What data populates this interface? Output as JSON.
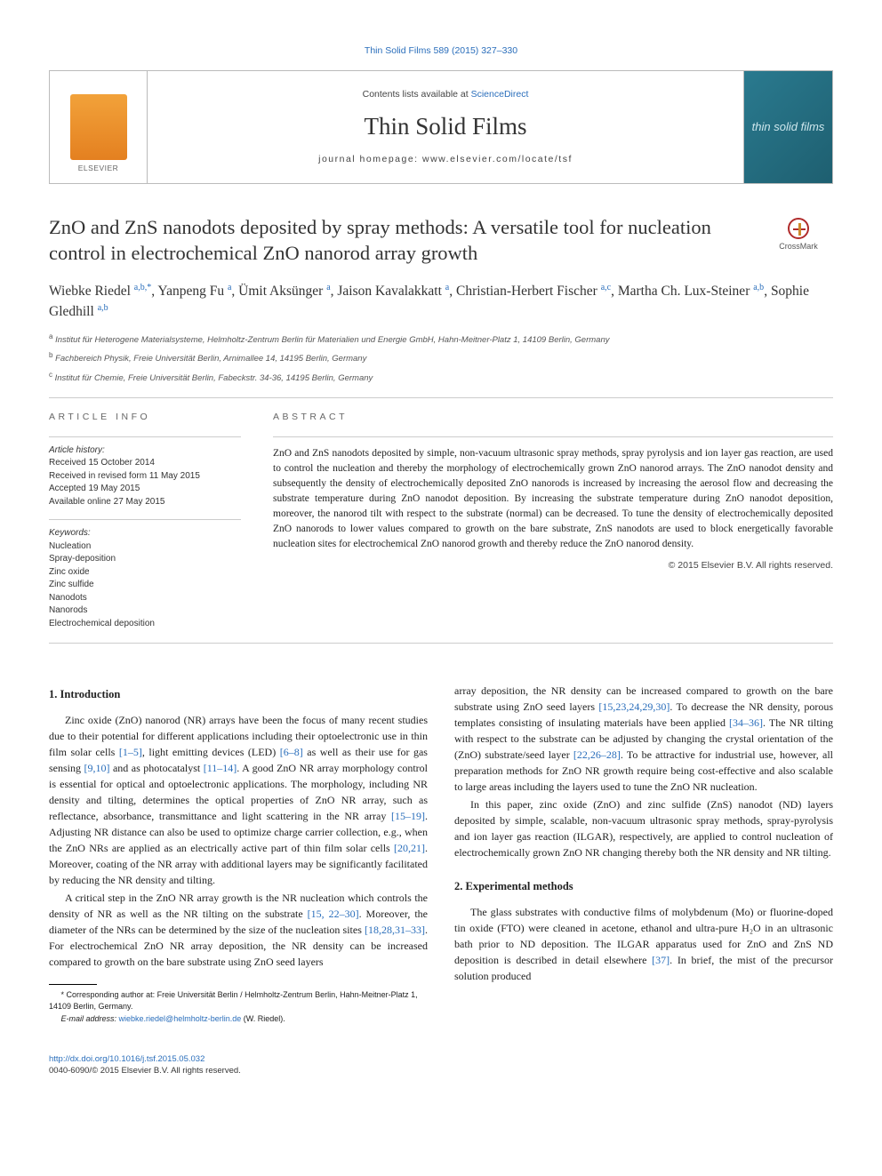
{
  "topLink": "Thin Solid Films 589 (2015) 327–330",
  "header": {
    "contentsPrefix": "Contents lists available at ",
    "contentsLink": "ScienceDirect",
    "journalName": "Thin Solid Films",
    "homepage": "journal homepage: www.elsevier.com/locate/tsf",
    "coverText": "thin solid films"
  },
  "title": "ZnO and ZnS nanodots deposited by spray methods: A versatile tool for nucleation control in electrochemical ZnO nanorod array growth",
  "crossmarkLabel": "CrossMark",
  "authors": [
    {
      "name": "Wiebke Riedel ",
      "sup": "a,b,*"
    },
    {
      "name": ", Yanpeng Fu ",
      "sup": "a"
    },
    {
      "name": ", Ümit Aksünger ",
      "sup": "a"
    },
    {
      "name": ", Jaison Kavalakkatt ",
      "sup": "a"
    },
    {
      "name": ", Christian-Herbert Fischer ",
      "sup": "a,c"
    },
    {
      "name": ", Martha Ch. Lux-Steiner ",
      "sup": "a,b"
    },
    {
      "name": ", Sophie Gledhill ",
      "sup": "a,b"
    }
  ],
  "affiliations": [
    {
      "sup": "a",
      "text": " Institut für Heterogene Materialsysteme, Helmholtz-Zentrum Berlin für Materialien und Energie GmbH, Hahn-Meitner-Platz 1, 14109 Berlin, Germany"
    },
    {
      "sup": "b",
      "text": " Fachbereich Physik, Freie Universität Berlin, Arnimallee 14, 14195 Berlin, Germany"
    },
    {
      "sup": "c",
      "text": " Institut für Chemie, Freie Universität Berlin, Fabeckstr. 34-36, 14195 Berlin, Germany"
    }
  ],
  "articleInfo": {
    "label": "article info",
    "historyLabel": "Article history:",
    "history": [
      "Received 15 October 2014",
      "Received in revised form 11 May 2015",
      "Accepted 19 May 2015",
      "Available online 27 May 2015"
    ],
    "keywordsLabel": "Keywords:",
    "keywords": [
      "Nucleation",
      "Spray-deposition",
      "Zinc oxide",
      "Zinc sulfide",
      "Nanodots",
      "Nanorods",
      "Electrochemical deposition"
    ]
  },
  "abstract": {
    "label": "abstract",
    "text": "ZnO and ZnS nanodots deposited by simple, non-vacuum ultrasonic spray methods, spray pyrolysis and ion layer gas reaction, are used to control the nucleation and thereby the morphology of electrochemically grown ZnO nanorod arrays. The ZnO nanodot density and subsequently the density of electrochemically deposited ZnO nanorods is increased by increasing the aerosol flow and decreasing the substrate temperature during ZnO nanodot deposition. By increasing the substrate temperature during ZnO nanodot deposition, moreover, the nanorod tilt with respect to the substrate (normal) can be decreased. To tune the density of electrochemically deposited ZnO nanorods to lower values compared to growth on the bare substrate, ZnS nanodots are used to block energetically favorable nucleation sites for electrochemical ZnO nanorod growth and thereby reduce the ZnO nanorod density.",
    "copyright": "© 2015 Elsevier B.V. All rights reserved."
  },
  "sections": {
    "introTitle": "1. Introduction",
    "intro1a": "Zinc oxide (ZnO) nanorod (NR) arrays have been the focus of many recent studies due to their potential for different applications including their optoelectronic use in thin film solar cells ",
    "ref1": "[1–5]",
    "intro1b": ", light emitting devices (LED) ",
    "ref2": "[6–8]",
    "intro1c": " as well as their use for gas sensing ",
    "ref3": "[9,10]",
    "intro1d": " and as photocatalyst ",
    "ref4": "[11–14]",
    "intro1e": ". A good ZnO NR array morphology control is essential for optical and optoelectronic applications. The morphology, including NR density and tilting, determines the optical properties of ZnO NR array, such as reflectance, absorbance, transmittance and light scattering in the NR array ",
    "ref5": "[15–19]",
    "intro1f": ". Adjusting NR distance can also be used to optimize charge carrier collection, e.g., when the ZnO NRs are applied as an electrically active part of thin film solar cells ",
    "ref6": "[20,21]",
    "intro1g": ". Moreover, coating of the NR array with additional layers may be significantly facilitated by reducing the NR density and tilting.",
    "intro2a": "A critical step in the ZnO NR array growth is the NR nucleation which controls the density of NR as well as the NR tilting on the substrate ",
    "ref7": "[15, 22–30]",
    "intro2b": ". Moreover, the diameter of the NRs can be determined by the size of the nucleation sites ",
    "ref8": "[18,28,31–33]",
    "intro2c": ". For electrochemical ZnO NR array deposition, the NR density can be increased compared to growth on the bare substrate using ZnO seed layers ",
    "ref9": "[15,23,24,29,30]",
    "intro2d": ". To decrease the NR density, porous templates consisting of insulating materials have been applied ",
    "ref10": "[34–36]",
    "intro2e": ". The NR tilting with respect to the substrate can be adjusted by changing the crystal orientation of the (ZnO) substrate/seed layer ",
    "ref11": "[22,26–28]",
    "intro2f": ". To be attractive for industrial use, however, all preparation methods for ZnO NR growth require being cost-effective and also scalable to large areas including the layers used to tune the ZnO NR nucleation.",
    "intro3": "In this paper, zinc oxide (ZnO) and zinc sulfide (ZnS) nanodot (ND) layers deposited by simple, scalable, non-vacuum ultrasonic spray methods, spray-pyrolysis and ion layer gas reaction (ILGAR), respectively, are applied to control nucleation of electrochemically grown ZnO NR changing thereby both the NR density and NR tilting.",
    "methodsTitle": "2. Experimental methods",
    "methods1a": "The glass substrates with conductive films of molybdenum (Mo) or fluorine-doped tin oxide (FTO) were cleaned in acetone, ethanol and ultra-pure H₂O in an ultrasonic bath prior to ND deposition. The ILGAR apparatus used for ZnO and ZnS ND deposition is described in detail elsewhere ",
    "ref12": "[37]",
    "methods1b": ". In brief, the mist of the precursor solution produced"
  },
  "corresponding": {
    "star": "*",
    "label": " Corresponding author at: Freie Universität Berlin / Helmholtz-Zentrum Berlin, Hahn-Meitner-Platz 1, 14109 Berlin, Germany.",
    "emailLabel": "E-mail address: ",
    "email": "wiebke.riedel@helmholtz-berlin.de",
    "emailAfter": " (W. Riedel)."
  },
  "footer": {
    "doi": "http://dx.doi.org/10.1016/j.tsf.2015.05.032",
    "line2": "0040-6090/© 2015 Elsevier B.V. All rights reserved."
  },
  "colors": {
    "link": "#2a6ebb",
    "text": "#222222",
    "border": "#bbbbbb",
    "elsevier": "#e48020",
    "cover": "#2a7a8f"
  },
  "typography": {
    "body_fontsize": 12,
    "title_fontsize": 22.5,
    "journal_fontsize": 27,
    "authors_fontsize": 15.5,
    "abstract_fontsize": 11.5,
    "footnote_fontsize": 9
  }
}
